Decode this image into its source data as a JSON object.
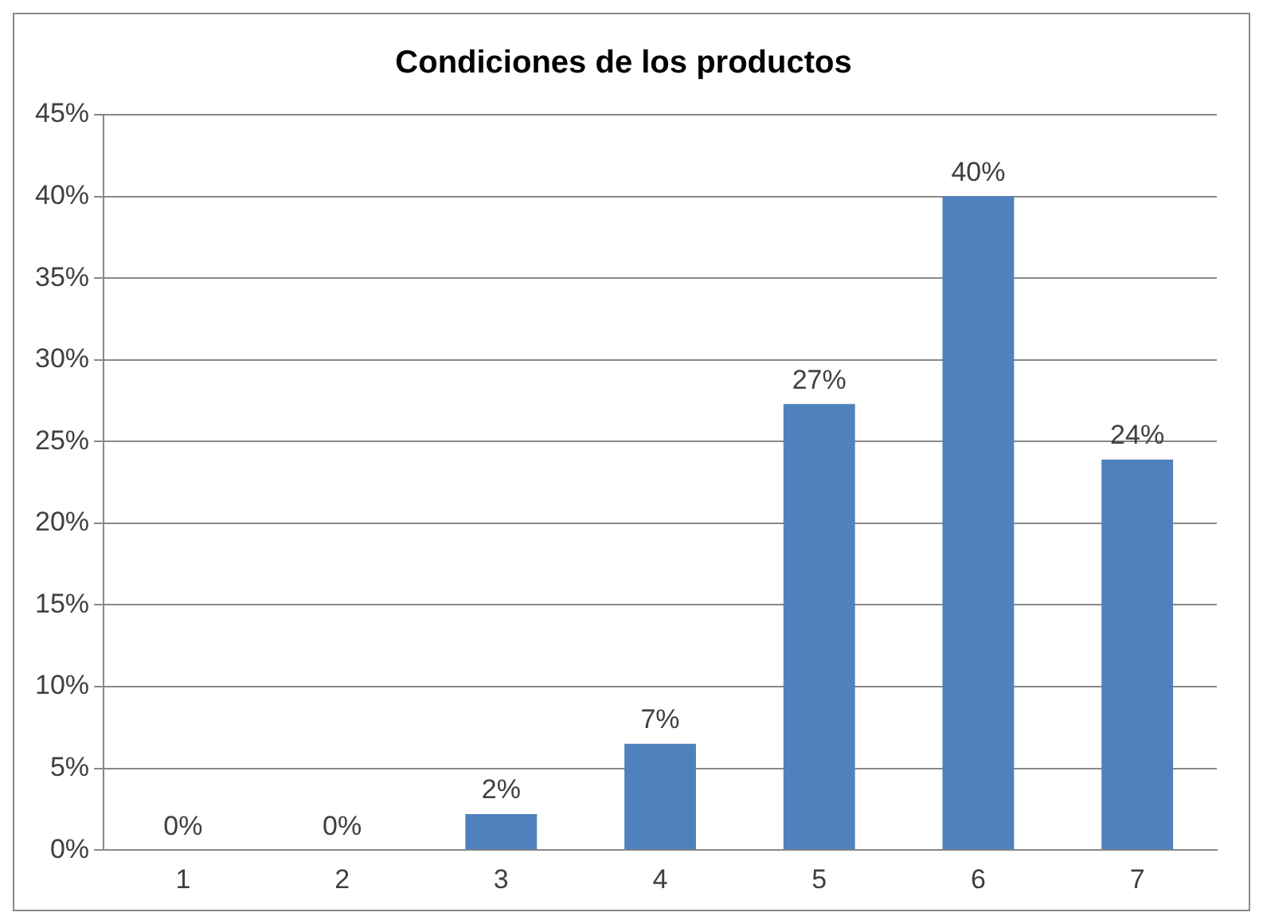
{
  "chart_data": {
    "type": "bar",
    "title": "Condiciones de los productos",
    "categories": [
      "1",
      "2",
      "3",
      "4",
      "5",
      "6",
      "7"
    ],
    "values": [
      0,
      0,
      2.2,
      6.5,
      27.3,
      40,
      23.9
    ],
    "value_labels": [
      "0%",
      "0%",
      "2%",
      "7%",
      "27%",
      "40%",
      "24%"
    ],
    "color": "#4f81bd",
    "ylim": [
      0,
      45
    ],
    "yticks": [
      {
        "value": 0,
        "label": "0%"
      },
      {
        "value": 5,
        "label": "5%"
      },
      {
        "value": 10,
        "label": "10%"
      },
      {
        "value": 15,
        "label": "15%"
      },
      {
        "value": 20,
        "label": "20%"
      },
      {
        "value": 25,
        "label": "25%"
      },
      {
        "value": 30,
        "label": "30%"
      },
      {
        "value": 35,
        "label": "35%"
      },
      {
        "value": 40,
        "label": "40%"
      },
      {
        "value": 45,
        "label": "45%"
      }
    ],
    "grid": "y",
    "legend": false
  }
}
